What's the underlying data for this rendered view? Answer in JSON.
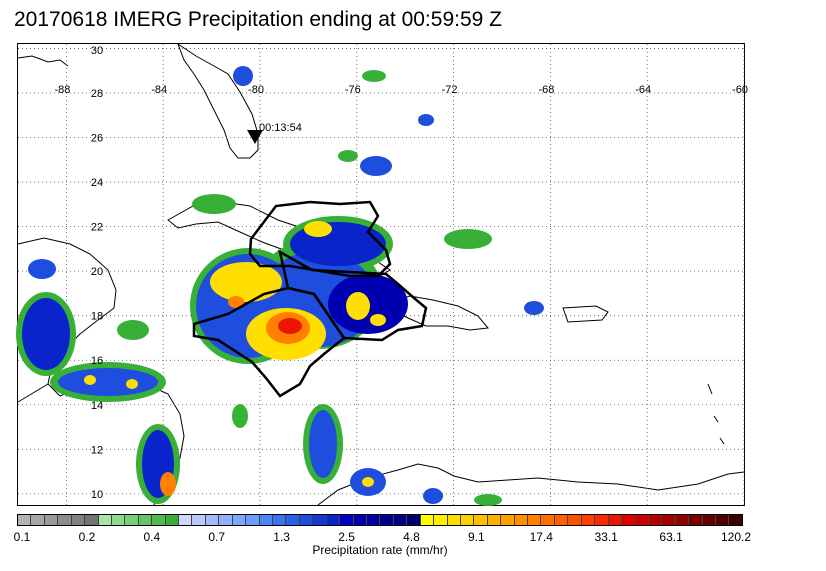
{
  "title": "20170618 IMERG Precipitation ending at 00:59:59 Z",
  "map": {
    "lon_range": [
      -90,
      -60
    ],
    "lat_range": [
      9.5,
      30.2
    ],
    "lon_ticks": [
      "-88",
      "-84",
      "-80",
      "-76",
      "-72",
      "-68",
      "-64",
      "-60"
    ],
    "lat_ticks": [
      "30",
      "28",
      "26",
      "24",
      "22",
      "20",
      "18",
      "16",
      "14",
      "12",
      "10"
    ],
    "grid": "dotted",
    "marker": {
      "label": "00:13:54",
      "symbol": "inverted-triangle",
      "lon": -80,
      "lat": 26.5
    }
  },
  "colorbar": {
    "title": "Precipitation rate (mm/hr)",
    "tick_labels": [
      "0.1",
      "0.2",
      "0.4",
      "0.7",
      "1.3",
      "2.5",
      "4.8",
      "9.1",
      "17.4",
      "33.1",
      "63.1",
      "120.2"
    ],
    "colors": [
      "#b3b3b3",
      "#a6a6a6",
      "#999999",
      "#8c8c8c",
      "#808080",
      "#737373",
      "#a6e3a6",
      "#8fd98f",
      "#79cf79",
      "#63c563",
      "#4dbb4d",
      "#38b038",
      "#cfd8ff",
      "#b8c8ff",
      "#a3baff",
      "#8fb0ff",
      "#7da8ff",
      "#6a9cff",
      "#4d86f5",
      "#3a73ee",
      "#2b60e6",
      "#1f4ddd",
      "#1438d4",
      "#0a24cb",
      "#0000c0",
      "#0000b0",
      "#0000a0",
      "#000090",
      "#000080",
      "#000070",
      "#ffff00",
      "#ffef00",
      "#ffdf00",
      "#ffcf00",
      "#ffbf00",
      "#ffaf00",
      "#ff9f00",
      "#ff8f00",
      "#ff7f00",
      "#ff6f00",
      "#ff5f00",
      "#ff4f00",
      "#ff3f00",
      "#f52a00",
      "#eb1500",
      "#e00000",
      "#cc0000",
      "#b80000",
      "#a30000",
      "#8f0000",
      "#7a0000",
      "#660000",
      "#520000",
      "#3d0000"
    ]
  }
}
